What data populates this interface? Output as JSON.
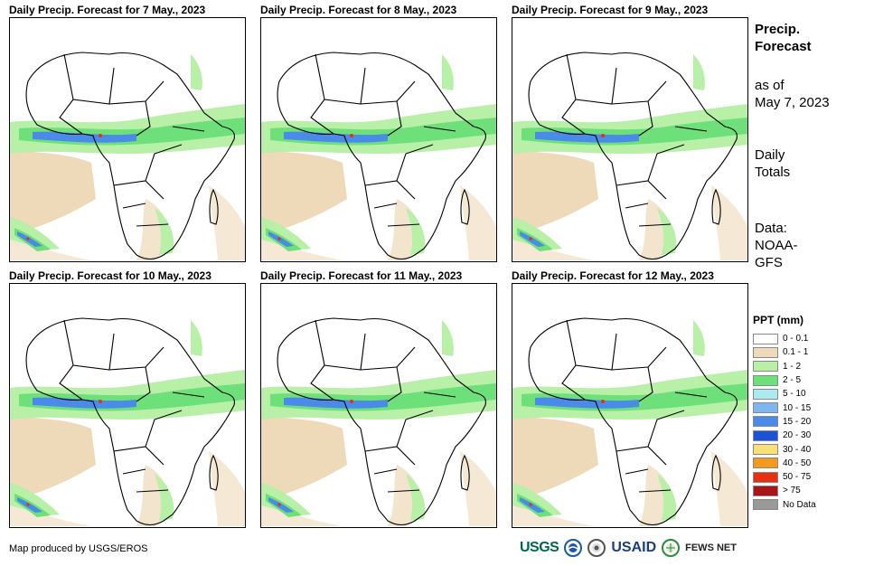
{
  "panels": [
    {
      "title": "Daily Precip. Forecast for 7 May., 2023"
    },
    {
      "title": "Daily Precip. Forecast for 8 May., 2023"
    },
    {
      "title": "Daily Precip. Forecast for 9 May., 2023"
    },
    {
      "title": "Daily Precip. Forecast for 10 May., 2023"
    },
    {
      "title": "Daily Precip. Forecast for 11 May., 2023"
    },
    {
      "title": "Daily Precip. Forecast for 12 May., 2023"
    }
  ],
  "side": {
    "title_line1": "Precip.",
    "title_line2": "Forecast",
    "asof_line1": "as of",
    "asof_line2": "May 7, 2023",
    "daily_line1": "Daily",
    "daily_line2": "Totals",
    "data_line1": "Data:",
    "data_line2": "NOAA-",
    "data_line3": "GFS"
  },
  "legend": {
    "title": "PPT (mm)",
    "items": [
      {
        "label": "0 - 0.1",
        "color": "#ffffff"
      },
      {
        "label": "0.1 - 1",
        "color": "#eed9b8"
      },
      {
        "label": "1 - 2",
        "color": "#b8f0a8"
      },
      {
        "label": "2 - 5",
        "color": "#6ee07a"
      },
      {
        "label": "5 - 10",
        "color": "#a8ecf0"
      },
      {
        "label": "10 - 15",
        "color": "#7fb6f0"
      },
      {
        "label": "15 - 20",
        "color": "#4a8ae8"
      },
      {
        "label": "20 - 30",
        "color": "#1c52d8"
      },
      {
        "label": "30 - 40",
        "color": "#fbe07a"
      },
      {
        "label": "40 - 50",
        "color": "#f59a1a"
      },
      {
        "label": "50 - 75",
        "color": "#e8300f"
      },
      {
        "label": "> 75",
        "color": "#a8161b"
      },
      {
        "label": "No Data",
        "color": "#999999"
      }
    ]
  },
  "credit": "Map produced by USGS/EROS",
  "logos": {
    "usgs": "USGS",
    "usaid": "USAID",
    "fews": "FEWS NET"
  }
}
